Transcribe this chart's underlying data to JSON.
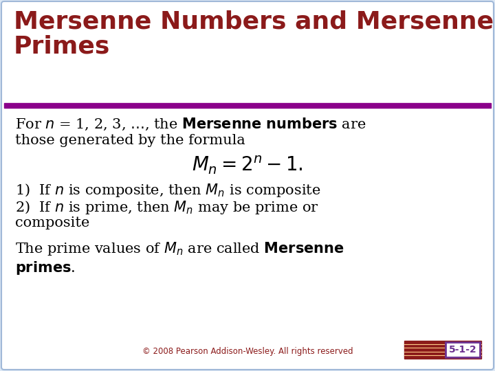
{
  "title_line1": "Mersenne Numbers and Mersenne",
  "title_line2": "Primes",
  "title_color": "#8B1A1A",
  "title_fontsize": 26,
  "header_bar_color": "#8B008B",
  "bg_color": "#DCE8F5",
  "white_bg": "#FFFFFF",
  "border_color": "#A0B8D8",
  "body_text_color": "#000000",
  "footer_text": "© 2008 Pearson Addison-Wesley. All rights reserved",
  "footer_color": "#8B1A1A",
  "badge_text": "5-1-2",
  "badge_bg": "#FFFFFF",
  "badge_border": "#6B3090",
  "badge_stripe_color": "#8B1A1A",
  "body_fontsize": 15,
  "formula_fontsize": 20
}
